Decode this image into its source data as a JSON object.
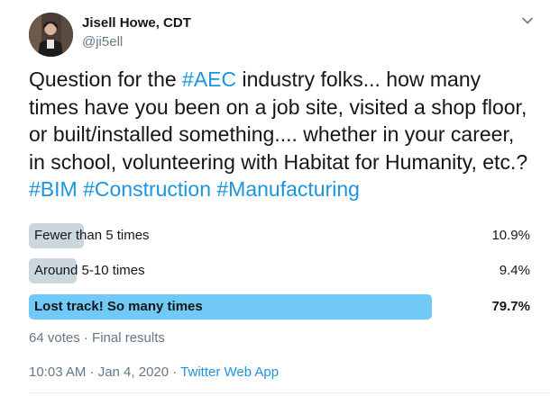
{
  "user": {
    "name": "Jisell Howe, CDT",
    "handle": "@ji5ell"
  },
  "tweet": {
    "text_part1": "Question for the ",
    "hashtag_aec": "#AEC",
    "text_part2": " industry folks... how many times have you been on a job site, visited a shop floor, or built/installed something.... whether in your career, in school, volunteering with Habitat for Humanity, etc.? ",
    "hashtag_bim": "#BIM",
    "hashtag_construction": "#Construction",
    "hashtag_manufacturing": "#Manufacturing"
  },
  "poll": {
    "options": [
      {
        "label": "Fewer than 5 times",
        "percent_label": "10.9%",
        "percent": 10.9,
        "winner": false
      },
      {
        "label": "Around 5-10 times",
        "percent_label": "9.4%",
        "percent": 9.4,
        "winner": false
      },
      {
        "label": "Lost track! So many times",
        "percent_label": "79.7%",
        "percent": 79.7,
        "winner": true
      }
    ],
    "meta": "64 votes · Final results"
  },
  "footer": {
    "time_date": "10:03 AM · Jan 4, 2020 · ",
    "app": "Twitter Web App"
  },
  "colors": {
    "link": "#1b95e0",
    "bar": "#ccd6dd",
    "bar_winner": "#71c9f8",
    "muted": "#657786"
  },
  "icons": {
    "caret": "chevron-down-icon"
  }
}
